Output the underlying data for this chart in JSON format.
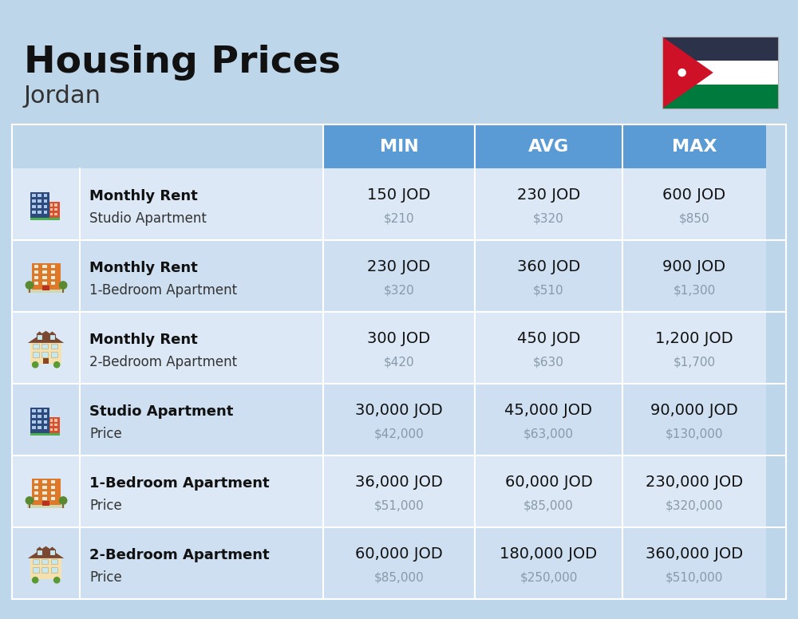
{
  "title": "Housing Prices",
  "subtitle": "Jordan",
  "background_color": "#bed6ea",
  "header_bg_color": "#5b9bd5",
  "row_bg_even": "#cddff0",
  "row_bg_odd": "#dce8f5",
  "rows": [
    {
      "bold_text": "Monthly Rent",
      "sub_text": "Studio Apartment",
      "min_jod": "150 JOD",
      "min_usd": "$210",
      "avg_jod": "230 JOD",
      "avg_usd": "$320",
      "max_jod": "600 JOD",
      "max_usd": "$850",
      "icon": "blue_red"
    },
    {
      "bold_text": "Monthly Rent",
      "sub_text": "1-Bedroom Apartment",
      "min_jod": "230 JOD",
      "min_usd": "$320",
      "avg_jod": "360 JOD",
      "avg_usd": "$510",
      "max_jod": "900 JOD",
      "max_usd": "$1,300",
      "icon": "orange_trees"
    },
    {
      "bold_text": "Monthly Rent",
      "sub_text": "2-Bedroom Apartment",
      "min_jod": "300 JOD",
      "min_usd": "$420",
      "avg_jod": "450 JOD",
      "avg_usd": "$630",
      "max_jod": "1,200 JOD",
      "max_usd": "$1,700",
      "icon": "beige_house"
    },
    {
      "bold_text": "Studio Apartment",
      "sub_text": "Price",
      "min_jod": "30,000 JOD",
      "min_usd": "$42,000",
      "avg_jod": "45,000 JOD",
      "avg_usd": "$63,000",
      "max_jod": "90,000 JOD",
      "max_usd": "$130,000",
      "icon": "blue_red"
    },
    {
      "bold_text": "1-Bedroom Apartment",
      "sub_text": "Price",
      "min_jod": "36,000 JOD",
      "min_usd": "$51,000",
      "avg_jod": "60,000 JOD",
      "avg_usd": "$85,000",
      "max_jod": "230,000 JOD",
      "max_usd": "$320,000",
      "icon": "orange_trees"
    },
    {
      "bold_text": "2-Bedroom Apartment",
      "sub_text": "Price",
      "min_jod": "60,000 JOD",
      "min_usd": "$85,000",
      "avg_jod": "180,000 JOD",
      "avg_usd": "$250,000",
      "max_jod": "360,000 JOD",
      "max_usd": "$510,000",
      "icon": "beige_house2"
    }
  ]
}
